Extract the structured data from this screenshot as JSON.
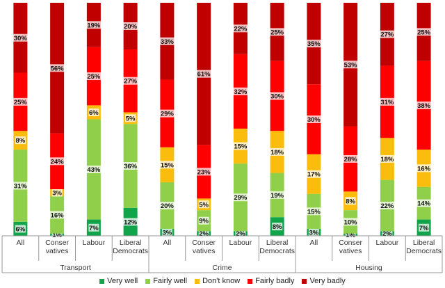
{
  "chart_data": {
    "type": "bar",
    "stacked": true,
    "normalized": true,
    "orientation": "vertical",
    "ylim": [
      0,
      100
    ],
    "title": "",
    "xlabel": "",
    "ylabel": "",
    "groups": [
      {
        "name": "Transport",
        "categories": [
          "All",
          "Conser vatives",
          "Labour",
          "Liberal Democrats"
        ]
      },
      {
        "name": "Crime",
        "categories": [
          "All",
          "Conser vatives",
          "Labour",
          "Liberal Democrats"
        ]
      },
      {
        "name": "Housing",
        "categories": [
          "All",
          "Conser vatives",
          "Labour",
          "Liberal Democrats"
        ]
      }
    ],
    "category_lines": {
      "All": [
        "All"
      ],
      "Conser vatives": [
        "Conser",
        "vatives"
      ],
      "Labour": [
        "Labour"
      ],
      "Liberal Democrats": [
        "Liberal",
        "Democrats"
      ]
    },
    "series": [
      {
        "name": "Very well",
        "color": "#10a54a",
        "values": [
          6,
          1,
          7,
          12,
          3,
          2,
          2,
          8,
          3,
          1,
          2,
          7
        ],
        "labels": [
          "6%",
          "1%",
          "7%",
          "12%",
          "3%",
          "2%",
          "2%",
          "8%",
          "3%",
          "1%",
          "2%",
          "7%"
        ]
      },
      {
        "name": "Fairly well",
        "color": "#8fcf4a",
        "values": [
          31,
          16,
          43,
          36,
          20,
          9,
          29,
          19,
          15,
          10,
          22,
          14
        ],
        "labels": [
          "31%",
          "16%",
          "43%",
          "36%",
          "20%",
          "9%",
          "29%",
          "19%",
          "15%",
          "10%",
          "22%",
          "14%"
        ]
      },
      {
        "name": "Don't know",
        "color": "#fbbd0d",
        "values": [
          8,
          3,
          6,
          5,
          15,
          5,
          15,
          18,
          17,
          8,
          18,
          16
        ],
        "labels": [
          "8%",
          "3%",
          "6%",
          "5%",
          "15%",
          "5%",
          "15%",
          "18%",
          "17%",
          "8%",
          "18%",
          "16%"
        ]
      },
      {
        "name": "Fairly badly",
        "color": "#fe0000",
        "values": [
          25,
          24,
          25,
          27,
          29,
          23,
          32,
          30,
          30,
          28,
          31,
          38
        ],
        "labels": [
          "25%",
          "24%",
          "25%",
          "27%",
          "29%",
          "23%",
          "32%",
          "30%",
          "30%",
          "28%",
          "31%",
          "38%"
        ]
      },
      {
        "name": "Very badly",
        "color": "#c00000",
        "values": [
          30,
          56,
          19,
          20,
          33,
          61,
          22,
          25,
          35,
          53,
          27,
          25
        ],
        "labels": [
          "30%",
          "56%",
          "19%",
          "20%",
          "33%",
          "61%",
          "22%",
          "25%",
          "35%",
          "53%",
          "27%",
          "25%"
        ]
      }
    ],
    "legend": {
      "position": "bottom"
    }
  }
}
